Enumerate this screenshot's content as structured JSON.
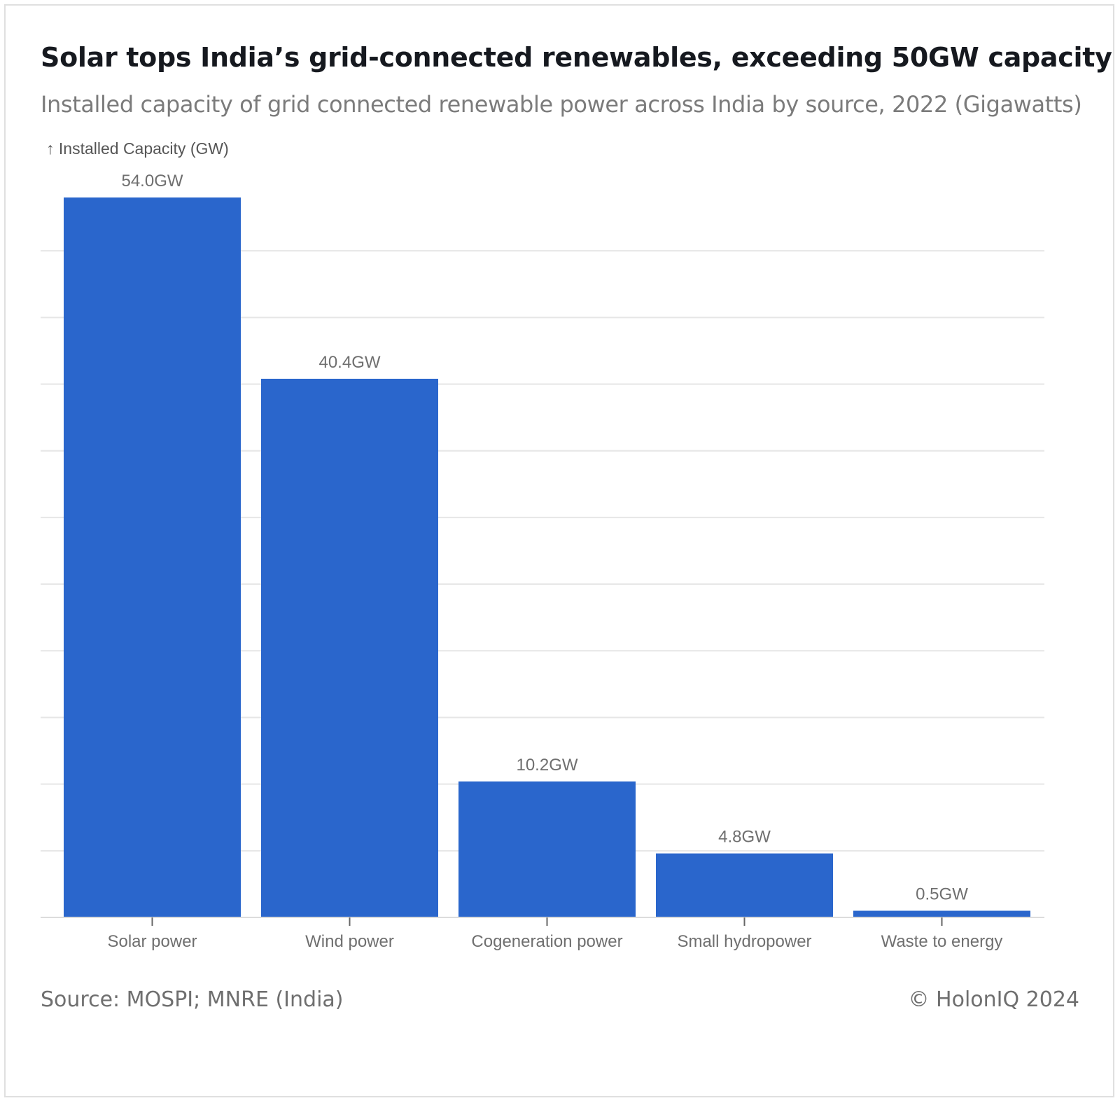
{
  "header": {
    "title": "Solar tops India’s grid-connected renewables, exceeding 50GW capacity",
    "subtitle": "Installed capacity of grid connected renewable power across India by source, 2022 (Gigawatts)"
  },
  "footer": {
    "source": "Source: MOSPI; MNRE (India)",
    "copyright": "© HolonIQ 2024"
  },
  "chart_data": {
    "type": "bar",
    "title": "Solar tops India’s grid-connected renewables, exceeding 50GW capacity",
    "subtitle": "Installed capacity of grid connected renewable power across India by source, 2022 (Gigawatts)",
    "ylabel": "↑ Installed Capacity (GW)",
    "xlabel": "",
    "categories": [
      "Solar power",
      "Wind power",
      "Cogeneration power",
      "Small hydropower",
      "Waste to energy"
    ],
    "values": [
      54.0,
      40.4,
      10.2,
      4.8,
      0.5
    ],
    "data_labels": [
      "54.0GW",
      "40.4GW",
      "10.2GW",
      "4.8GW",
      "0.5GW"
    ],
    "ylim": [
      0,
      54.0
    ],
    "grid": true,
    "gridline_step": 5,
    "y_tick_labels_shown": false,
    "legend": "none",
    "bar_color": "#2a66cc",
    "grid_color": "#e6e6e6",
    "text_color": "#6f6f6f"
  }
}
